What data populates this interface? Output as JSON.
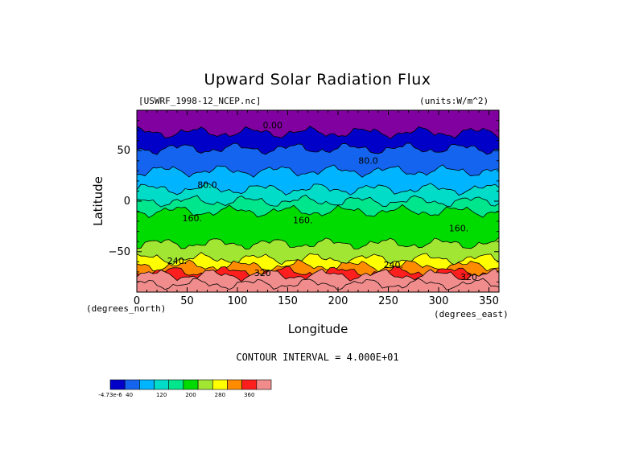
{
  "chart_data": {
    "type": "heatmap",
    "title": "Upward Solar Radiation Flux",
    "dataset": "[USWRF_1998-12_NCEP.nc]",
    "units_label": "(units:W/m^2)",
    "xlabel": "Longitude",
    "ylabel": "Latitude",
    "x_unit_label": "(degrees_east)",
    "y_unit_label": "(degrees_north)",
    "xlim": [
      0,
      360
    ],
    "ylim": [
      -90,
      90
    ],
    "x_ticks": [
      0,
      50,
      100,
      150,
      200,
      250,
      300,
      350
    ],
    "y_ticks": [
      50,
      0,
      -50
    ],
    "contour_interval_text": "CONTOUR INTERVAL = 4.000E+01",
    "contour_labels": [
      {
        "text": "0.00",
        "lon": 135,
        "lat": 72
      },
      {
        "text": "80.0",
        "lon": 230,
        "lat": 37
      },
      {
        "text": "80.0",
        "lon": 70,
        "lat": 13
      },
      {
        "text": "160.",
        "lon": 55,
        "lat": -20
      },
      {
        "text": "160.",
        "lon": 165,
        "lat": -22
      },
      {
        "text": "160.",
        "lon": 320,
        "lat": -30
      },
      {
        "text": "240.",
        "lon": 40,
        "lat": -62
      },
      {
        "text": "240.",
        "lon": 255,
        "lat": -66
      },
      {
        "text": "320",
        "lon": 125,
        "lat": -74
      },
      {
        "text": "320",
        "lon": 330,
        "lat": -78
      }
    ],
    "band_boundaries": [
      {
        "lat": 90,
        "level": 0
      },
      {
        "lat": 68,
        "level": 1
      },
      {
        "lat": 52,
        "level": 2
      },
      {
        "lat": 30,
        "level": 3
      },
      {
        "lat": 12,
        "level": 4
      },
      {
        "lat": 0,
        "level": 5
      },
      {
        "lat": -10,
        "level": 6
      },
      {
        "lat": -42,
        "level": 7
      },
      {
        "lat": -57,
        "level": 8
      },
      {
        "lat": -64,
        "level": 9
      },
      {
        "lat": -70,
        "level": 10
      },
      {
        "lat": -73,
        "level": 11
      },
      {
        "lat": -82,
        "level": 12
      }
    ],
    "colorbar": {
      "colors": [
        "#8000a0",
        "#0000c8",
        "#1464f0",
        "#00b4ff",
        "#00dcc8",
        "#00e68c",
        "#00dc00",
        "#a0e632",
        "#ffff00",
        "#ff8c00",
        "#ff1e1e",
        "#f08c8c"
      ],
      "labels": [
        "-4.73e-6",
        "40",
        "120",
        "200",
        "280",
        "360"
      ]
    }
  }
}
